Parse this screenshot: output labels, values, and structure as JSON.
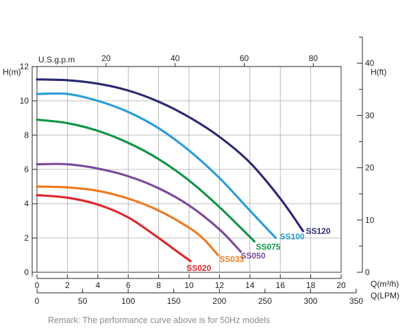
{
  "chart_data": {
    "type": "line",
    "title": "",
    "x": {
      "label": "Q(m³/h)",
      "min": 0,
      "max": 20,
      "ticks": [
        0,
        2,
        4,
        6,
        8,
        10,
        12,
        14,
        16,
        18,
        20
      ]
    },
    "x_lpm": {
      "label": "Q(LPM)",
      "min": 0,
      "max": 350,
      "ticks": [
        0,
        50,
        100,
        150,
        200,
        250,
        300,
        350
      ]
    },
    "x_usgpm": {
      "label": "U.S.g.p.m",
      "ticks": [
        20,
        40,
        60,
        80
      ]
    },
    "y": {
      "label": "H(m)",
      "min": 0,
      "max": 12,
      "ticks": [
        0,
        2,
        4,
        6,
        8,
        10,
        12
      ]
    },
    "y_ft": {
      "label": "H(ft)",
      "ticks": [
        0,
        10,
        20,
        30,
        40
      ]
    },
    "grid": true,
    "series": [
      {
        "name": "SS020",
        "color": "#e0262b",
        "x": [
          0,
          2,
          4,
          6,
          8,
          9,
          10.1
        ],
        "y": [
          4.5,
          4.35,
          3.95,
          3.2,
          2.0,
          1.35,
          0.65
        ]
      },
      {
        "name": "SS033",
        "color": "#ef7a21",
        "x": [
          0,
          2,
          4,
          6,
          8,
          10,
          11,
          11.9
        ],
        "y": [
          5.0,
          4.95,
          4.75,
          4.3,
          3.6,
          2.6,
          1.9,
          1.0
        ]
      },
      {
        "name": "SS050",
        "color": "#7b4b9c",
        "x": [
          0,
          2,
          4,
          6,
          8,
          10,
          12,
          13.4
        ],
        "y": [
          6.3,
          6.3,
          6.05,
          5.6,
          4.9,
          3.9,
          2.5,
          1.2
        ]
      },
      {
        "name": "SS075",
        "color": "#109447",
        "x": [
          0,
          2,
          4,
          6,
          8,
          10,
          12,
          14.3
        ],
        "y": [
          8.9,
          8.7,
          8.25,
          7.55,
          6.6,
          5.35,
          3.8,
          1.8
        ]
      },
      {
        "name": "SS100",
        "color": "#2c9dd8",
        "x": [
          0,
          2,
          4,
          6,
          8,
          10,
          12,
          14,
          15.7
        ],
        "y": [
          10.4,
          10.4,
          10.0,
          9.35,
          8.4,
          7.1,
          5.5,
          3.6,
          2.0
        ]
      },
      {
        "name": "SS120",
        "color": "#2a2b72",
        "x": [
          0,
          2,
          4,
          6,
          8,
          10,
          12,
          14,
          16,
          17.5
        ],
        "y": [
          11.25,
          11.2,
          11.0,
          10.6,
          9.95,
          9.05,
          7.9,
          6.4,
          4.3,
          2.4
        ]
      }
    ]
  },
  "remark": "Remark: The performance curve above is for 50Hz models"
}
